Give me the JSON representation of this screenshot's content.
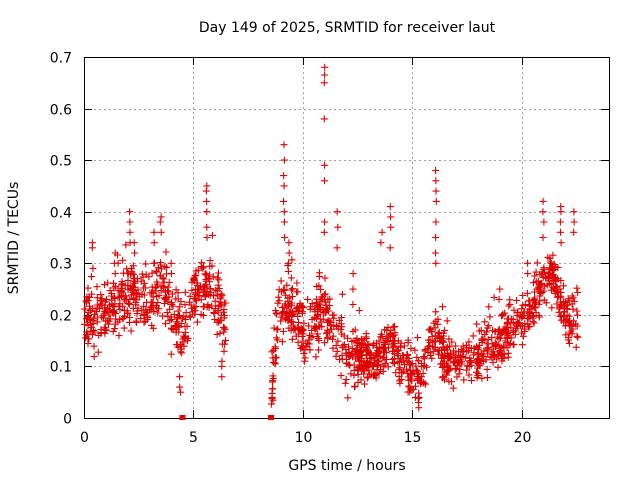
{
  "chart_data": {
    "type": "scatter",
    "title": "Day 149 of 2025, SRMTID for receiver laut",
    "xlabel": "GPS time / hours",
    "ylabel": "SRMTID / TECUs",
    "xlim": [
      0,
      24
    ],
    "ylim": [
      0,
      0.7
    ],
    "xticks": [
      0,
      5,
      10,
      15,
      20
    ],
    "xtick_labels": [
      "0",
      "5",
      "10",
      "15",
      "20"
    ],
    "yticks": [
      0,
      0.1,
      0.2,
      0.3,
      0.4,
      0.5,
      0.6,
      0.7
    ],
    "ytick_labels": [
      "0",
      "0.1",
      "0.2",
      "0.3",
      "0.4",
      "0.5",
      "0.6",
      "0.7"
    ],
    "grid": true,
    "marker": "plus",
    "point_color": "#e00000",
    "zero_markers": [
      {
        "x": 4.5,
        "y": 0
      },
      {
        "x": 8.55,
        "y": 0
      }
    ],
    "segments": [
      {
        "name": "arc-1",
        "x_range": [
          0.0,
          6.5
        ],
        "profile": [
          [
            0.0,
            0.19
          ],
          [
            1.0,
            0.2
          ],
          [
            2.0,
            0.25
          ],
          [
            3.0,
            0.22
          ],
          [
            3.5,
            0.27
          ],
          [
            4.2,
            0.18
          ],
          [
            4.6,
            0.17
          ],
          [
            5.0,
            0.24
          ],
          [
            5.7,
            0.26
          ],
          [
            6.2,
            0.22
          ],
          [
            6.5,
            0.15
          ]
        ],
        "spread": 0.06,
        "count": 480
      },
      {
        "name": "arc-2",
        "x_range": [
          8.55,
          13.0
        ],
        "profile": [
          [
            8.55,
            0.06
          ],
          [
            8.9,
            0.2
          ],
          [
            9.2,
            0.22
          ],
          [
            9.6,
            0.2
          ],
          [
            10.2,
            0.16
          ],
          [
            10.9,
            0.22
          ],
          [
            11.3,
            0.18
          ],
          [
            12.0,
            0.11
          ],
          [
            12.5,
            0.12
          ],
          [
            13.0,
            0.12
          ]
        ],
        "spread": 0.055,
        "count": 330
      },
      {
        "name": "arc-3",
        "x_range": [
          12.5,
          16.6
        ],
        "profile": [
          [
            12.5,
            0.11
          ],
          [
            13.5,
            0.11
          ],
          [
            14.0,
            0.17
          ],
          [
            14.5,
            0.1
          ],
          [
            15.0,
            0.08
          ],
          [
            15.5,
            0.09
          ],
          [
            16.0,
            0.17
          ],
          [
            16.6,
            0.12
          ]
        ],
        "spread": 0.04,
        "count": 300
      },
      {
        "name": "arc-4",
        "x_range": [
          16.3,
          22.6
        ],
        "profile": [
          [
            16.3,
            0.12
          ],
          [
            17.0,
            0.1
          ],
          [
            18.0,
            0.12
          ],
          [
            19.0,
            0.15
          ],
          [
            20.0,
            0.19
          ],
          [
            20.5,
            0.22
          ],
          [
            21.0,
            0.26
          ],
          [
            21.5,
            0.27
          ],
          [
            22.0,
            0.2
          ],
          [
            22.6,
            0.19
          ]
        ],
        "spread": 0.045,
        "count": 460
      }
    ],
    "spikes": [
      {
        "x": 0.4,
        "values": [
          0.34,
          0.33,
          0.29
        ]
      },
      {
        "x": 1.4,
        "values": [
          0.32,
          0.3,
          0.28
        ]
      },
      {
        "x": 2.1,
        "values": [
          0.4,
          0.38,
          0.36,
          0.34
        ]
      },
      {
        "x": 2.3,
        "values": [
          0.34,
          0.32
        ]
      },
      {
        "x": 3.2,
        "values": [
          0.36,
          0.34,
          0.3
        ]
      },
      {
        "x": 3.5,
        "values": [
          0.39,
          0.38,
          0.36
        ]
      },
      {
        "x": 4.0,
        "values": [
          0.3,
          0.28
        ]
      },
      {
        "x": 4.4,
        "values": [
          0.06,
          0.05,
          0.08
        ]
      },
      {
        "x": 5.6,
        "values": [
          0.45,
          0.44,
          0.42,
          0.4,
          0.37,
          0.35
        ]
      },
      {
        "x": 6.3,
        "values": [
          0.11,
          0.1,
          0.08
        ]
      },
      {
        "x": 8.6,
        "values": [
          0.04,
          0.07
        ]
      },
      {
        "x": 9.15,
        "values": [
          0.53,
          0.5,
          0.47,
          0.45,
          0.42,
          0.4,
          0.38,
          0.35
        ]
      },
      {
        "x": 9.35,
        "values": [
          0.34,
          0.32,
          0.3
        ]
      },
      {
        "x": 11.0,
        "values": [
          0.68,
          0.665,
          0.65,
          0.58,
          0.49,
          0.46,
          0.38,
          0.36
        ]
      },
      {
        "x": 11.6,
        "values": [
          0.4,
          0.37,
          0.33
        ]
      },
      {
        "x": 12.3,
        "values": [
          0.28,
          0.25,
          0.22
        ]
      },
      {
        "x": 13.6,
        "values": [
          0.36,
          0.34
        ]
      },
      {
        "x": 14.0,
        "values": [
          0.41,
          0.39,
          0.37,
          0.33
        ]
      },
      {
        "x": 15.3,
        "values": [
          0.03,
          0.02,
          0.04
        ]
      },
      {
        "x": 16.1,
        "values": [
          0.48,
          0.46,
          0.44,
          0.42,
          0.38,
          0.35,
          0.32,
          0.3
        ]
      },
      {
        "x": 19.0,
        "values": [
          0.25,
          0.23
        ]
      },
      {
        "x": 20.3,
        "values": [
          0.3,
          0.28
        ]
      },
      {
        "x": 21.0,
        "values": [
          0.42,
          0.4,
          0.38,
          0.35
        ]
      },
      {
        "x": 21.8,
        "values": [
          0.41,
          0.4,
          0.38,
          0.36,
          0.34
        ]
      },
      {
        "x": 22.4,
        "values": [
          0.4,
          0.38,
          0.36
        ]
      }
    ]
  }
}
